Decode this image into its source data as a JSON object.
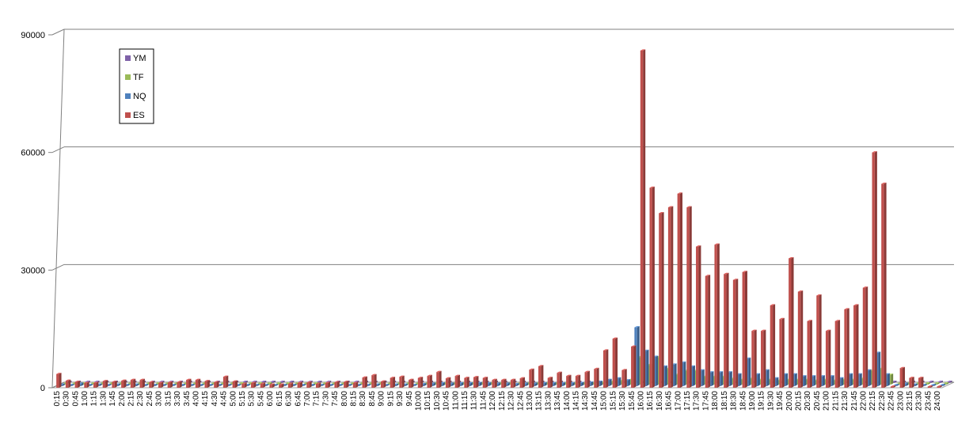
{
  "chart_data": {
    "type": "bar",
    "title": "",
    "xlabel": "",
    "ylabel": "",
    "ylim": [
      0,
      90000
    ],
    "yticks": [
      0,
      30000,
      60000,
      90000
    ],
    "grid": true,
    "legend_position": "top-left",
    "categories": [
      "0:15",
      "0:30",
      "0:45",
      "1:00",
      "1:15",
      "1:30",
      "1:45",
      "2:00",
      "2:15",
      "2:30",
      "2:45",
      "3:00",
      "3:15",
      "3:30",
      "3:45",
      "4:00",
      "4:15",
      "4:30",
      "4:45",
      "5:00",
      "5:15",
      "5:30",
      "5:45",
      "6:00",
      "6:15",
      "6:30",
      "6:45",
      "7:00",
      "7:15",
      "7:30",
      "7:45",
      "8:00",
      "8:15",
      "8:30",
      "8:45",
      "9:00",
      "9:15",
      "9:30",
      "9:45",
      "10:00",
      "10:15",
      "10:30",
      "10:45",
      "11:00",
      "11:15",
      "11:30",
      "11:45",
      "12:00",
      "12:15",
      "12:30",
      "12:45",
      "13:00",
      "13:15",
      "13:30",
      "13:45",
      "14:00",
      "14:15",
      "14:30",
      "14:45",
      "15:00",
      "15:15",
      "15:30",
      "15:45",
      "16:00",
      "16:15",
      "16:30",
      "16:45",
      "17:00",
      "17:15",
      "17:30",
      "17:45",
      "18:00",
      "18:15",
      "18:30",
      "18:45",
      "19:00",
      "19:15",
      "19:30",
      "19:45",
      "20:00",
      "20:15",
      "20:30",
      "20:45",
      "21:00",
      "21:15",
      "21:30",
      "21:45",
      "22:00",
      "22:15",
      "22:30",
      "22:45",
      "23:00",
      "23:15",
      "23:30",
      "23:45",
      "24:00"
    ],
    "series": [
      {
        "name": "YM",
        "color": "#7F62A8",
        "values": [
          0,
          0,
          0,
          0,
          0,
          0,
          0,
          0,
          0,
          0,
          0,
          0,
          0,
          0,
          0,
          0,
          0,
          0,
          0,
          0,
          0,
          0,
          0,
          0,
          0,
          0,
          0,
          0,
          0,
          0,
          0,
          0,
          0,
          0,
          0,
          0,
          0,
          0,
          0,
          0,
          0,
          0,
          0,
          0,
          0,
          0,
          0,
          0,
          0,
          0,
          0,
          0,
          0,
          0,
          0,
          0,
          0,
          0,
          0,
          0,
          0,
          0,
          0,
          0,
          0,
          0,
          0,
          0,
          0,
          0,
          0,
          0,
          0,
          0,
          0,
          0,
          0,
          0,
          0,
          0,
          0,
          0,
          0,
          0,
          0,
          0,
          0,
          0,
          0,
          0,
          0,
          0,
          0,
          0,
          0,
          0
        ]
      },
      {
        "name": "TF",
        "color": "#9BBB59",
        "values": [
          0,
          0,
          0,
          0,
          0,
          0,
          0,
          0,
          0,
          0,
          0,
          0,
          0,
          0,
          0,
          0,
          0,
          0,
          0,
          0,
          0,
          0,
          0,
          0,
          0,
          0,
          0,
          0,
          0,
          0,
          0,
          0,
          0,
          0,
          0,
          0,
          0,
          0,
          0,
          0,
          0,
          0,
          0,
          0,
          0,
          0,
          0,
          0,
          0,
          0,
          0,
          0,
          0,
          0,
          0,
          0,
          0,
          0,
          500,
          700,
          900,
          1200,
          7000,
          5000,
          7000,
          4000,
          2500,
          3500,
          3500,
          2000,
          2000,
          2000,
          1500,
          1200,
          1500,
          1200,
          1200,
          1000,
          1200,
          1200,
          1200,
          1000,
          1200,
          1000,
          1200,
          1200,
          1500,
          3500,
          4000,
          2500,
          0,
          0,
          0,
          0,
          0,
          0
        ]
      },
      {
        "name": "NQ",
        "color": "#4F81BD",
        "values": [
          400,
          300,
          600,
          300,
          400,
          300,
          400,
          300,
          400,
          300,
          300,
          300,
          300,
          300,
          300,
          300,
          300,
          300,
          300,
          300,
          300,
          200,
          200,
          200,
          200,
          200,
          200,
          200,
          200,
          200,
          200,
          200,
          200,
          300,
          400,
          300,
          400,
          400,
          300,
          500,
          600,
          700,
          600,
          700,
          700,
          800,
          700,
          600,
          600,
          500,
          600,
          600,
          700,
          700,
          700,
          700,
          800,
          900,
          1100,
          1600,
          2000,
          1500,
          15000,
          9000,
          7500,
          5000,
          5500,
          6000,
          5000,
          4000,
          3500,
          3500,
          3500,
          3000,
          7000,
          3000,
          4000,
          2000,
          3000,
          3000,
          2500,
          2500,
          2500,
          2500,
          2000,
          3000,
          3000,
          4000,
          8500,
          3000,
          0,
          600,
          400,
          300,
          0,
          0
        ]
      },
      {
        "name": "ES",
        "color": "#C0504D",
        "values": [
          3500,
          1800,
          1500,
          1200,
          1200,
          1700,
          1500,
          1800,
          2000,
          2000,
          1400,
          1200,
          1300,
          1400,
          2000,
          2000,
          1700,
          1400,
          2800,
          1600,
          1000,
          1200,
          1000,
          800,
          800,
          1000,
          1200,
          1300,
          1000,
          1200,
          1400,
          1500,
          1200,
          2600,
          3200,
          1600,
          2500,
          2800,
          2000,
          2500,
          3000,
          4000,
          2400,
          3000,
          2500,
          2700,
          2500,
          2000,
          2000,
          2000,
          2400,
          4600,
          5500,
          2500,
          3800,
          3000,
          3000,
          4000,
          4800,
          9500,
          12500,
          4500,
          10500,
          86000,
          51000,
          44500,
          46000,
          49500,
          46000,
          36000,
          28500,
          36500,
          29000,
          27500,
          29500,
          14500,
          14500,
          21000,
          17500,
          33000,
          24500,
          17000,
          23500,
          14500,
          17000,
          20000,
          21000,
          25500,
          60000,
          52000,
          0,
          5000,
          2500,
          2500,
          0,
          0
        ]
      }
    ]
  }
}
